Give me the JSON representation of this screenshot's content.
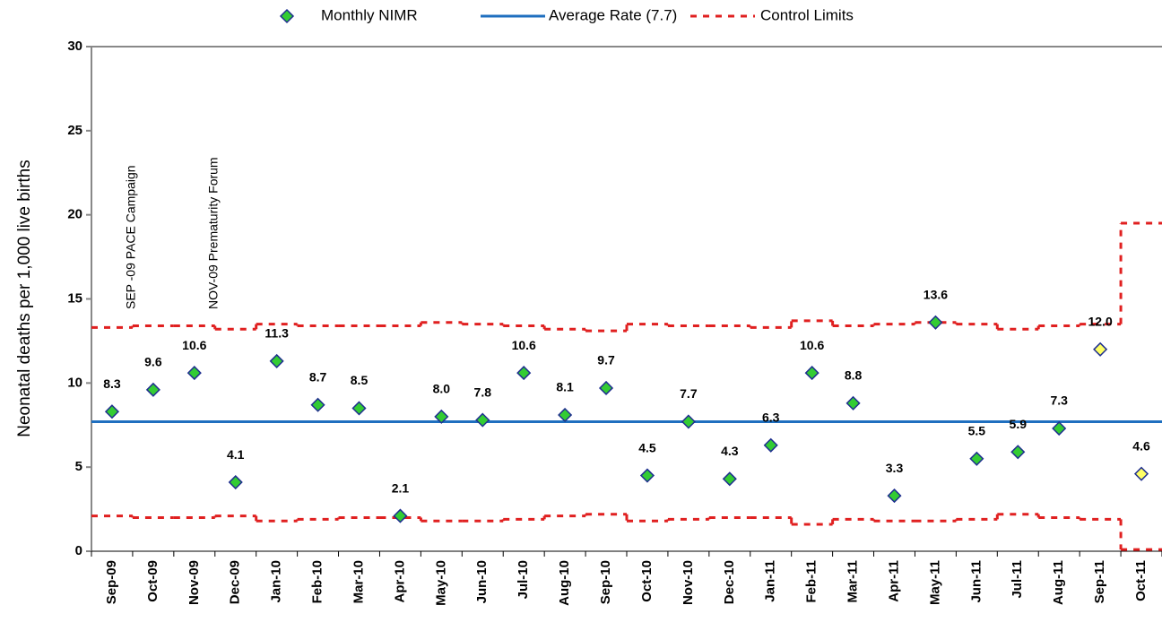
{
  "chart_data": {
    "type": "line",
    "y_label": "Neonatal deaths per 1,000 live births",
    "categories": [
      "Sep-09",
      "Oct-09",
      "Nov-09",
      "Dec-09",
      "Jan-10",
      "Feb-10",
      "Mar-10",
      "Apr-10",
      "May-10",
      "Jun-10",
      "Jul-10",
      "Aug-10",
      "Sep-10",
      "Oct-10",
      "Nov-10",
      "Dec-10",
      "Jan-11",
      "Feb-11",
      "Mar-11",
      "Apr-11",
      "May-11",
      "Jun-11",
      "Jul-11",
      "Aug-11",
      "Sep-11",
      "Oct-11"
    ],
    "series": [
      {
        "name": "Monthly NIMR",
        "color": "#33cc33",
        "values": [
          8.3,
          9.6,
          10.6,
          4.1,
          11.3,
          8.7,
          8.5,
          2.1,
          8.0,
          7.8,
          10.6,
          8.1,
          9.7,
          4.5,
          7.7,
          4.3,
          6.3,
          10.6,
          8.8,
          3.3,
          13.6,
          5.5,
          5.9,
          7.3,
          12.0,
          4.6
        ],
        "value_labels": [
          "8.3",
          "9.6",
          "10.6",
          "4.1",
          "11.3",
          "8.7",
          "8.5",
          "2.1",
          "8.0",
          "7.8",
          "10.6",
          "8.1",
          "9.7",
          "4.5",
          "7.7",
          "4.3",
          "6.3",
          "10.6",
          "8.8",
          "3.3",
          "13.6",
          "5.5",
          "5.9",
          "7.3",
          "12.0",
          "4.6"
        ],
        "point_colors": [
          "#33cc33",
          "#33cc33",
          "#33cc33",
          "#33cc33",
          "#33cc33",
          "#33cc33",
          "#33cc33",
          "#33cc33",
          "#33cc33",
          "#33cc33",
          "#33cc33",
          "#33cc33",
          "#33cc33",
          "#33cc33",
          "#33cc33",
          "#33cc33",
          "#33cc33",
          "#33cc33",
          "#33cc33",
          "#33cc33",
          "#33cc33",
          "#33cc33",
          "#33cc33",
          "#33cc33",
          "#ffff66",
          "#ffff66"
        ]
      }
    ],
    "average": {
      "name": "Average Rate (7.7)",
      "value": 7.7,
      "color": "#1f6fbf"
    },
    "control_limits": {
      "name": "Control Limits",
      "color": "#e02020",
      "upper": [
        13.3,
        13.4,
        13.4,
        13.2,
        13.5,
        13.4,
        13.4,
        13.4,
        13.6,
        13.5,
        13.4,
        13.2,
        13.1,
        13.5,
        13.4,
        13.4,
        13.3,
        13.7,
        13.4,
        13.5,
        13.6,
        13.5,
        13.2,
        13.4,
        13.5,
        19.5
      ],
      "lower": [
        2.1,
        2.0,
        2.0,
        2.1,
        1.8,
        1.9,
        2.0,
        2.0,
        1.8,
        1.8,
        1.9,
        2.1,
        2.2,
        1.8,
        1.9,
        2.0,
        2.0,
        1.6,
        1.9,
        1.8,
        1.8,
        1.9,
        2.2,
        2.0,
        1.9,
        0.1
      ]
    },
    "annotations": [
      "SEP -09 PACE Campaign",
      "NOV-09 Prematurity Forum"
    ],
    "ylim": [
      0,
      30
    ],
    "yticks": [
      0,
      5,
      10,
      15,
      20,
      25,
      30
    ],
    "grid": false
  }
}
